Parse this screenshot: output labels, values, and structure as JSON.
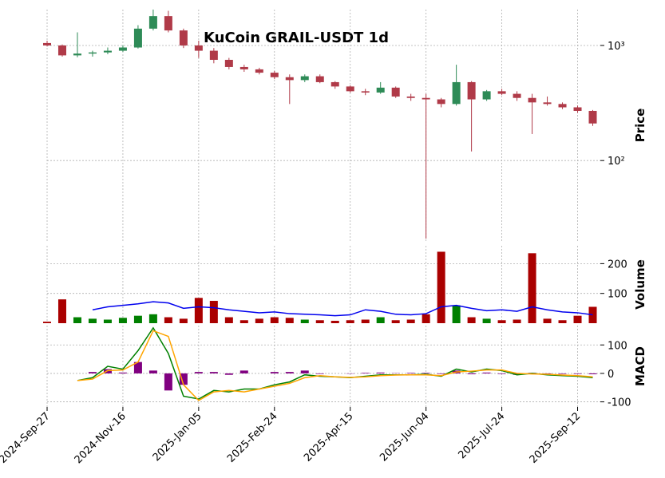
{
  "chart_data": {
    "type": "candlestick",
    "title": "KuCoin GRAIL-USDT 1d",
    "x": [
      "2024-09-27",
      "2024-10-07",
      "2024-10-17",
      "2024-10-27",
      "2024-11-06",
      "2024-11-16",
      "2024-11-26",
      "2024-12-06",
      "2024-12-16",
      "2024-12-26",
      "2025-01-05",
      "2025-01-15",
      "2025-01-25",
      "2025-02-04",
      "2025-02-14",
      "2025-02-24",
      "2025-03-06",
      "2025-03-16",
      "2025-03-26",
      "2025-04-05",
      "2025-04-15",
      "2025-04-25",
      "2025-05-05",
      "2025-05-15",
      "2025-05-25",
      "2025-06-04",
      "2025-06-14",
      "2025-06-24",
      "2025-07-04",
      "2025-07-14",
      "2025-07-24",
      "2025-08-03",
      "2025-08-13",
      "2025-08-23",
      "2025-09-02",
      "2025-09-12",
      "2025-09-22"
    ],
    "xlim": [
      "2024-09-27",
      "2025-09-27"
    ],
    "xticks": [
      {
        "value": "2024-09-27",
        "label": "2024-Sep-27"
      },
      {
        "value": "2024-11-16",
        "label": "2024-Nov-16"
      },
      {
        "value": "2025-01-05",
        "label": "2025-Jan-05"
      },
      {
        "value": "2025-02-24",
        "label": "2025-Feb-24"
      },
      {
        "value": "2025-04-15",
        "label": "2025-Apr-15"
      },
      {
        "value": "2025-06-04",
        "label": "2025-Jun-04"
      },
      {
        "value": "2025-07-24",
        "label": "2025-Jul-24"
      },
      {
        "value": "2025-09-12",
        "label": "2025-Sep-12"
      }
    ],
    "grid": true,
    "up_color": "#2e8b57",
    "down_color": "#b03a48",
    "price": {
      "ylabel": "Price",
      "log_scale": true,
      "ylim": [
        20,
        2050
      ],
      "yticks": [
        {
          "value": 100,
          "label": "10²"
        },
        {
          "value": 1000,
          "label": "10³"
        }
      ],
      "open": [
        1050,
        1000,
        820,
        850,
        870,
        900,
        960,
        1400,
        1800,
        1350,
        1000,
        900,
        750,
        650,
        620,
        580,
        530,
        500,
        540,
        480,
        440,
        400,
        390,
        430,
        360,
        350,
        340,
        310,
        480,
        340,
        400,
        380,
        350,
        320,
        310,
        290,
        270
      ],
      "high": [
        1100,
        1020,
        1300,
        900,
        960,
        1000,
        1500,
        2050,
        2000,
        1400,
        1100,
        950,
        780,
        680,
        640,
        600,
        560,
        560,
        560,
        490,
        450,
        420,
        480,
        440,
        380,
        380,
        350,
        680,
        490,
        410,
        420,
        400,
        380,
        360,
        320,
        300,
        275
      ],
      "low": [
        980,
        800,
        790,
        800,
        840,
        880,
        940,
        1350,
        1300,
        950,
        780,
        700,
        620,
        590,
        560,
        510,
        310,
        480,
        470,
        420,
        390,
        370,
        380,
        350,
        330,
        21,
        290,
        300,
        120,
        330,
        370,
        330,
        170,
        300,
        280,
        260,
        200
      ],
      "close": [
        1000,
        820,
        850,
        870,
        900,
        960,
        1400,
        1800,
        1350,
        1000,
        900,
        750,
        650,
        620,
        580,
        530,
        500,
        540,
        480,
        440,
        400,
        390,
        430,
        360,
        350,
        340,
        310,
        480,
        340,
        400,
        380,
        350,
        320,
        310,
        290,
        270,
        210
      ]
    },
    "volume": {
      "ylabel": "Volume",
      "ylim": [
        0,
        260
      ],
      "yticks": [
        100,
        200
      ],
      "ma_color": "#0000ee",
      "values": [
        5,
        80,
        20,
        15,
        12,
        18,
        25,
        30,
        20,
        15,
        85,
        75,
        20,
        10,
        15,
        20,
        18,
        12,
        10,
        8,
        10,
        12,
        20,
        10,
        12,
        30,
        240,
        60,
        20,
        15,
        10,
        12,
        235,
        15,
        10,
        25,
        55
      ],
      "ma": [
        null,
        null,
        null,
        45,
        55,
        60,
        65,
        72,
        68,
        50,
        55,
        52,
        45,
        40,
        35,
        38,
        32,
        30,
        28,
        25,
        28,
        45,
        40,
        30,
        28,
        32,
        55,
        60,
        50,
        42,
        45,
        40,
        55,
        45,
        38,
        35,
        28
      ]
    },
    "macd": {
      "ylabel": "MACD",
      "ylim": [
        -118,
        168
      ],
      "yticks": [
        -100,
        0,
        100
      ],
      "hist_color": "#800080",
      "series": [
        {
          "name": "MACD",
          "color": "#008000",
          "values": [
            null,
            null,
            -25,
            -15,
            25,
            15,
            80,
            160,
            70,
            -80,
            -90,
            -60,
            -65,
            -55,
            -55,
            -40,
            -30,
            -5,
            -10,
            -12,
            -15,
            -10,
            -5,
            -5,
            -5,
            -3,
            -10,
            15,
            5,
            15,
            10,
            -5,
            0,
            -5,
            -8,
            -10,
            -15
          ]
        },
        {
          "name": "Signal",
          "color": "#ffa500",
          "values": [
            null,
            null,
            -25,
            -20,
            10,
            12,
            40,
            150,
            130,
            -40,
            -95,
            -65,
            -60,
            -65,
            -55,
            -45,
            -35,
            -15,
            -8,
            -12,
            -14,
            -12,
            -8,
            -6,
            -5,
            -5,
            -8,
            5,
            8,
            12,
            12,
            0,
            -2,
            -3,
            -6,
            -8,
            -12
          ]
        }
      ],
      "hist": [
        null,
        null,
        0,
        5,
        15,
        3,
        40,
        10,
        -60,
        -40,
        5,
        5,
        -5,
        10,
        0,
        5,
        5,
        10,
        -2,
        0,
        -1,
        2,
        3,
        1,
        2,
        2,
        -2,
        10,
        -3,
        3,
        -2,
        -5,
        2,
        -2,
        -2,
        -2,
        -3
      ]
    }
  }
}
